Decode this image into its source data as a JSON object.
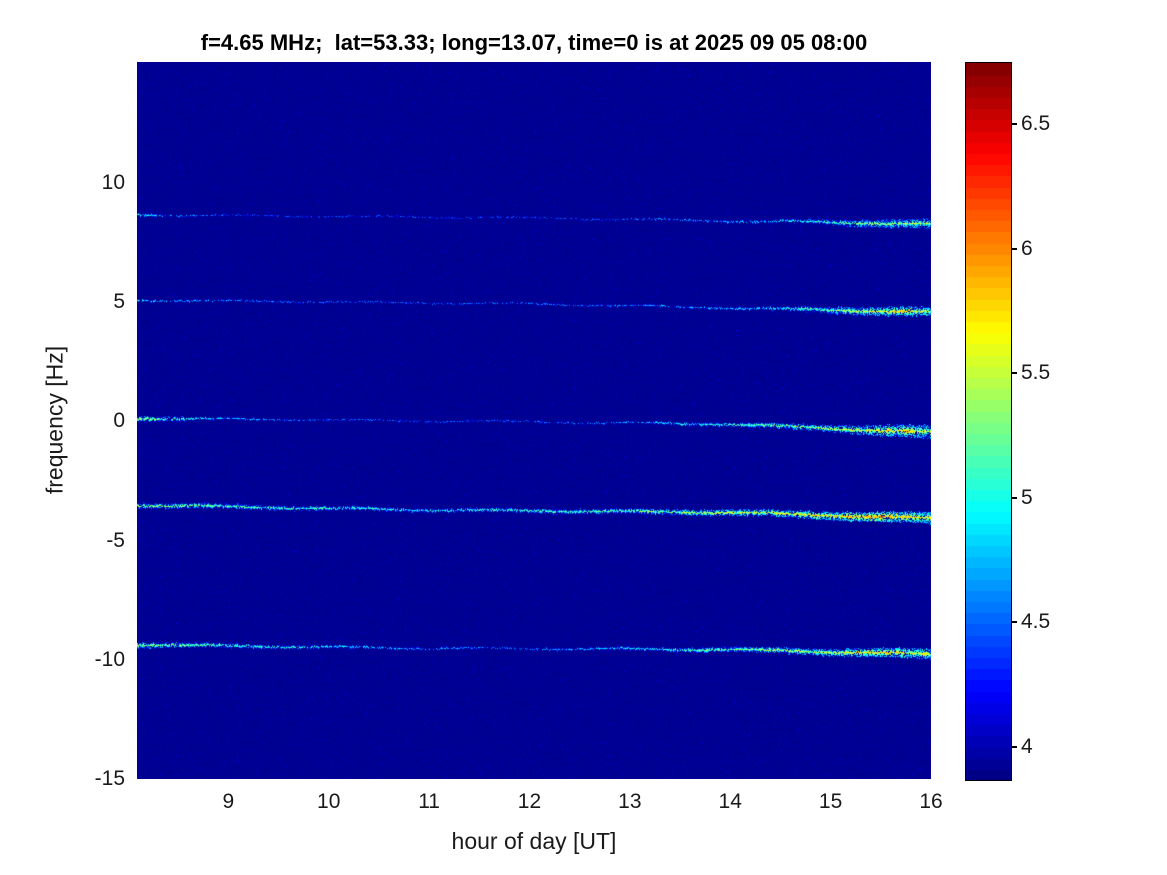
{
  "chart_data": {
    "type": "heatmap",
    "title": "f=4.65 MHz;  lat=53.33; long=13.07, time=0 is at 2025 09 05 08:00",
    "xlabel": "hour of day [UT]",
    "ylabel": "frequency [Hz]",
    "x_range": [
      8.09,
      16
    ],
    "xticks": [
      9,
      10,
      11,
      12,
      13,
      14,
      15,
      16
    ],
    "y_range": [
      -15,
      15.07
    ],
    "yticks": [
      10,
      5,
      0,
      -5,
      -10,
      -15
    ],
    "grid": false,
    "legend": "none",
    "colorbar": {
      "position": "right",
      "colormap": "jet",
      "value_range": [
        3.87,
        6.75
      ],
      "ticks": [
        4,
        4.5,
        5,
        5.5,
        6,
        6.5
      ],
      "bands": 64,
      "low_color": "#00008a",
      "high_color": "#800000"
    },
    "background_value": 3.9,
    "description": "Doppler spectrogram: five horizontal spectral traces drifting slightly downward in frequency over the day, intensity increasing after ~14 UT",
    "traces": [
      {
        "name": "trace +8.6 Hz",
        "freq": [
          [
            8.09,
            8.68
          ],
          [
            12,
            8.55
          ],
          [
            16,
            8.3
          ]
        ],
        "intensity": [
          [
            8.09,
            5.1
          ],
          [
            8.35,
            4.7
          ],
          [
            9,
            4.45
          ],
          [
            11,
            4.4
          ],
          [
            12.5,
            4.45
          ],
          [
            13.8,
            4.7
          ],
          [
            14.8,
            5.0
          ],
          [
            15.4,
            5.4
          ],
          [
            16,
            5.5
          ]
        ],
        "spread": [
          [
            8.09,
            2.5
          ],
          [
            9,
            1.5
          ],
          [
            13,
            1.5
          ],
          [
            14.5,
            2.5
          ],
          [
            15.3,
            4
          ],
          [
            16,
            5
          ]
        ],
        "density": [
          [
            8.09,
            0.5
          ],
          [
            9,
            0.25
          ],
          [
            13,
            0.3
          ],
          [
            14.5,
            0.6
          ],
          [
            15.3,
            1.2
          ],
          [
            16,
            1.4
          ]
        ]
      },
      {
        "name": "trace +5.0 Hz",
        "freq": [
          [
            8.09,
            5.1
          ],
          [
            12,
            4.95
          ],
          [
            16,
            4.6
          ]
        ],
        "intensity": [
          [
            8.09,
            5.0
          ],
          [
            8.6,
            4.7
          ],
          [
            9.5,
            4.55
          ],
          [
            11,
            4.5
          ],
          [
            12.5,
            4.55
          ],
          [
            13.5,
            4.7
          ],
          [
            14.5,
            5.0
          ],
          [
            15.2,
            5.5
          ],
          [
            15.7,
            5.8
          ],
          [
            16,
            5.6
          ]
        ],
        "spread": [
          [
            8.09,
            2
          ],
          [
            9,
            1.5
          ],
          [
            13,
            1.5
          ],
          [
            14.5,
            2.5
          ],
          [
            15.2,
            4
          ],
          [
            16,
            5
          ]
        ],
        "density": [
          [
            8.09,
            0.4
          ],
          [
            9,
            0.3
          ],
          [
            13,
            0.35
          ],
          [
            14.5,
            0.7
          ],
          [
            15.2,
            1.3
          ],
          [
            16,
            1.5
          ]
        ]
      },
      {
        "name": "trace 0 Hz",
        "freq": [
          [
            8.09,
            0.15
          ],
          [
            12,
            0.0
          ],
          [
            14,
            -0.1
          ],
          [
            16,
            -0.45
          ]
        ],
        "intensity": [
          [
            8.09,
            5.5
          ],
          [
            8.6,
            5.1
          ],
          [
            9.2,
            4.7
          ],
          [
            10,
            4.5
          ],
          [
            11.5,
            4.45
          ],
          [
            12.8,
            4.6
          ],
          [
            13.6,
            5.0
          ],
          [
            14.5,
            5.3
          ],
          [
            15.2,
            5.6
          ],
          [
            15.7,
            5.8
          ],
          [
            16,
            5.5
          ]
        ],
        "spread": [
          [
            8.09,
            3
          ],
          [
            9,
            1.8
          ],
          [
            13,
            1.8
          ],
          [
            14,
            2.5
          ],
          [
            15,
            3.5
          ],
          [
            15.6,
            6
          ],
          [
            16,
            7
          ]
        ],
        "density": [
          [
            8.09,
            0.9
          ],
          [
            9,
            0.35
          ],
          [
            13,
            0.4
          ],
          [
            14,
            0.8
          ],
          [
            15,
            1.2
          ],
          [
            16,
            1.6
          ]
        ]
      },
      {
        "name": "trace -3.7 Hz",
        "freq": [
          [
            8.09,
            -3.5
          ],
          [
            11,
            -3.7
          ],
          [
            14,
            -3.8
          ],
          [
            16,
            -4.05
          ]
        ],
        "intensity": [
          [
            8.09,
            5.4
          ],
          [
            9,
            5.25
          ],
          [
            10,
            5.1
          ],
          [
            11,
            5.0
          ],
          [
            12,
            5.1
          ],
          [
            13,
            5.3
          ],
          [
            14,
            5.6
          ],
          [
            15,
            5.8
          ],
          [
            15.6,
            5.95
          ],
          [
            16,
            5.7
          ]
        ],
        "spread": [
          [
            8.09,
            3
          ],
          [
            10,
            2.5
          ],
          [
            12,
            2.5
          ],
          [
            13.5,
            3
          ],
          [
            14.5,
            3.5
          ],
          [
            15.5,
            5
          ],
          [
            16,
            6
          ]
        ],
        "density": [
          [
            8.09,
            1.0
          ],
          [
            10,
            0.8
          ],
          [
            12,
            0.8
          ],
          [
            13.5,
            1.1
          ],
          [
            14.5,
            1.4
          ],
          [
            16,
            1.8
          ]
        ]
      },
      {
        "name": "trace -9.5 Hz",
        "freq": [
          [
            8.09,
            -9.35
          ],
          [
            11,
            -9.5
          ],
          [
            14,
            -9.55
          ],
          [
            16,
            -9.75
          ]
        ],
        "intensity": [
          [
            8.09,
            5.4
          ],
          [
            8.8,
            5.25
          ],
          [
            9.8,
            5.0
          ],
          [
            10.8,
            4.7
          ],
          [
            12,
            4.6
          ],
          [
            13,
            4.9
          ],
          [
            14,
            5.3
          ],
          [
            15,
            5.6
          ],
          [
            15.6,
            5.85
          ],
          [
            16,
            5.6
          ]
        ],
        "spread": [
          [
            8.09,
            3
          ],
          [
            9.5,
            2.2
          ],
          [
            12,
            1.8
          ],
          [
            13.5,
            2.5
          ],
          [
            14.5,
            3
          ],
          [
            15.5,
            4.5
          ],
          [
            16,
            5.5
          ]
        ],
        "density": [
          [
            8.09,
            1.0
          ],
          [
            9.5,
            0.7
          ],
          [
            12,
            0.4
          ],
          [
            13.5,
            0.9
          ],
          [
            14.5,
            1.2
          ],
          [
            16,
            1.6
          ]
        ]
      }
    ]
  }
}
